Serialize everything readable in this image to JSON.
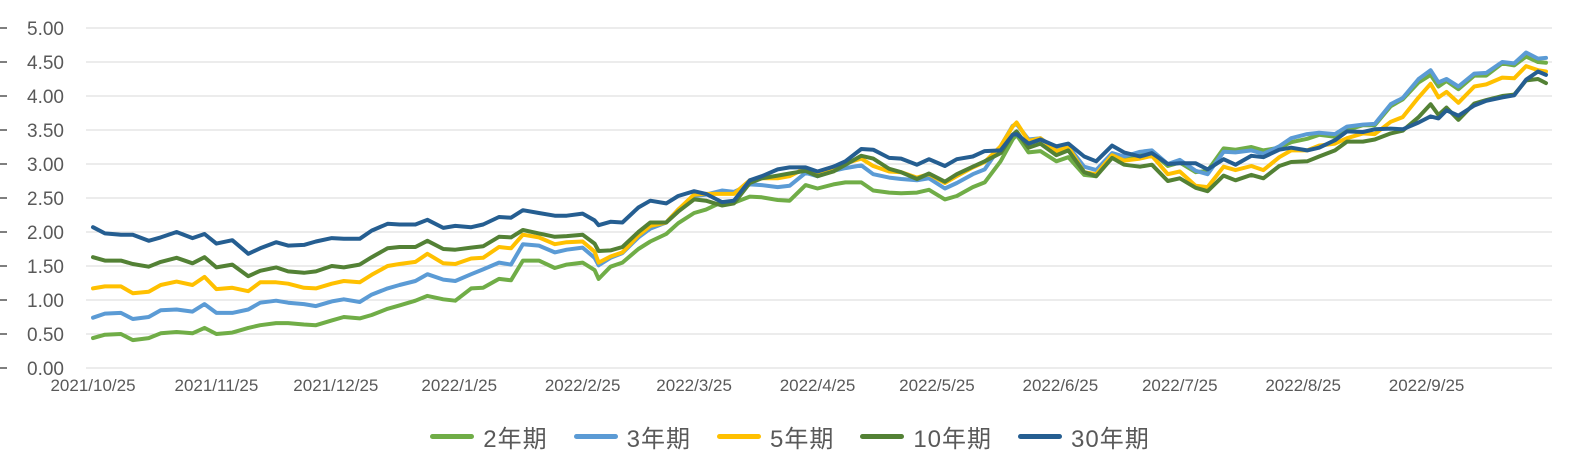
{
  "page": {
    "background": "#FFFFFF",
    "text_color": "#595959",
    "grid_color": "#D9D9D9"
  },
  "chart_data": {
    "type": "line",
    "title": "",
    "grid": true,
    "legend_position": "bottom",
    "y_axis": {
      "range": [
        0,
        5
      ],
      "tick_values": [
        0,
        0.5,
        1,
        1.5,
        2,
        2.5,
        3,
        3.5,
        4,
        4.5,
        5
      ],
      "tick_labels": [
        "0.00",
        "0.50",
        "1.00",
        "1.50",
        "2.00",
        "2.50",
        "3.00",
        "3.50",
        "4.00",
        "4.50",
        "5.00"
      ]
    },
    "x_axis": {
      "tick_labels": [
        "2021/10/25",
        "2021/11/25",
        "2021/12/25",
        "2022/1/25",
        "2022/2/25",
        "2022/3/25",
        "2022/4/25",
        "2022/5/25",
        "2022/6/25",
        "2022/7/25",
        "2022/8/25",
        "2022/9/25"
      ],
      "tick_days": [
        0,
        31,
        61,
        92,
        123,
        151,
        182,
        212,
        243,
        273,
        304,
        335
      ],
      "domain_days": [
        0,
        365
      ]
    },
    "days": [
      0,
      3,
      7,
      10,
      14,
      17,
      21,
      25,
      28,
      31,
      35,
      39,
      42,
      46,
      49,
      53,
      56,
      60,
      63,
      67,
      70,
      74,
      77,
      81,
      84,
      88,
      91,
      95,
      98,
      102,
      105,
      108,
      112,
      116,
      119,
      123,
      126,
      127,
      130,
      133,
      137,
      140,
      144,
      147,
      151,
      154,
      158,
      161,
      165,
      168,
      172,
      175,
      179,
      182,
      186,
      189,
      193,
      196,
      200,
      203,
      207,
      210,
      214,
      217,
      221,
      224,
      228,
      231,
      232,
      235,
      238,
      242,
      245,
      249,
      252,
      256,
      259,
      263,
      266,
      270,
      273,
      277,
      280,
      284,
      287,
      291,
      294,
      298,
      301,
      305,
      308,
      312,
      315,
      319,
      322,
      326,
      329,
      333,
      336,
      338,
      340,
      343,
      347,
      350,
      354,
      357,
      360,
      363,
      365
    ],
    "series": [
      {
        "key": "2y",
        "name": "2年期",
        "color": "#70AD47",
        "values": [
          0.44,
          0.49,
          0.5,
          0.41,
          0.44,
          0.51,
          0.53,
          0.51,
          0.59,
          0.5,
          0.52,
          0.59,
          0.63,
          0.66,
          0.66,
          0.64,
          0.63,
          0.7,
          0.75,
          0.73,
          0.78,
          0.87,
          0.92,
          0.99,
          1.06,
          1.01,
          0.99,
          1.17,
          1.18,
          1.31,
          1.29,
          1.58,
          1.58,
          1.47,
          1.52,
          1.55,
          1.44,
          1.31,
          1.49,
          1.55,
          1.75,
          1.86,
          1.97,
          2.13,
          2.28,
          2.33,
          2.44,
          2.43,
          2.52,
          2.51,
          2.47,
          2.46,
          2.69,
          2.64,
          2.7,
          2.73,
          2.73,
          2.61,
          2.58,
          2.57,
          2.58,
          2.62,
          2.48,
          2.53,
          2.66,
          2.73,
          3.04,
          3.36,
          3.43,
          3.17,
          3.19,
          3.04,
          3.1,
          2.84,
          2.82,
          3.12,
          3.07,
          3.15,
          3.17,
          2.97,
          3.02,
          2.88,
          2.9,
          3.23,
          3.21,
          3.25,
          3.2,
          3.24,
          3.32,
          3.37,
          3.43,
          3.4,
          3.5,
          3.57,
          3.57,
          3.85,
          3.95,
          4.2,
          4.31,
          4.14,
          4.22,
          4.1,
          4.3,
          4.3,
          4.48,
          4.45,
          4.58,
          4.5,
          4.49
        ]
      },
      {
        "key": "3y",
        "name": "3年期",
        "color": "#5B9BD5",
        "values": [
          0.74,
          0.8,
          0.81,
          0.72,
          0.75,
          0.85,
          0.86,
          0.83,
          0.94,
          0.81,
          0.81,
          0.86,
          0.96,
          0.99,
          0.96,
          0.94,
          0.91,
          0.98,
          1.01,
          0.97,
          1.08,
          1.17,
          1.22,
          1.28,
          1.38,
          1.3,
          1.28,
          1.38,
          1.45,
          1.55,
          1.52,
          1.82,
          1.8,
          1.7,
          1.74,
          1.77,
          1.62,
          1.51,
          1.62,
          1.69,
          1.92,
          2.05,
          2.14,
          2.33,
          2.53,
          2.55,
          2.61,
          2.59,
          2.7,
          2.69,
          2.66,
          2.68,
          2.87,
          2.82,
          2.9,
          2.94,
          2.98,
          2.85,
          2.8,
          2.78,
          2.76,
          2.79,
          2.64,
          2.72,
          2.85,
          2.92,
          3.26,
          3.56,
          3.59,
          3.36,
          3.38,
          3.21,
          3.26,
          2.96,
          2.91,
          3.16,
          3.11,
          3.18,
          3.2,
          3.0,
          3.06,
          2.9,
          2.85,
          3.18,
          3.17,
          3.2,
          3.15,
          3.26,
          3.38,
          3.44,
          3.46,
          3.44,
          3.55,
          3.58,
          3.59,
          3.88,
          3.97,
          4.25,
          4.38,
          4.2,
          4.25,
          4.14,
          4.33,
          4.34,
          4.5,
          4.48,
          4.64,
          4.55,
          4.56
        ]
      },
      {
        "key": "5y",
        "name": "5年期",
        "color": "#FFC000",
        "values": [
          1.17,
          1.2,
          1.2,
          1.1,
          1.12,
          1.22,
          1.27,
          1.22,
          1.34,
          1.16,
          1.18,
          1.13,
          1.26,
          1.26,
          1.24,
          1.18,
          1.17,
          1.24,
          1.28,
          1.26,
          1.37,
          1.5,
          1.53,
          1.56,
          1.68,
          1.54,
          1.53,
          1.61,
          1.62,
          1.78,
          1.76,
          1.96,
          1.92,
          1.82,
          1.85,
          1.86,
          1.71,
          1.55,
          1.64,
          1.7,
          1.95,
          2.09,
          2.14,
          2.33,
          2.55,
          2.56,
          2.56,
          2.56,
          2.76,
          2.79,
          2.79,
          2.82,
          2.94,
          2.84,
          2.92,
          3.01,
          3.08,
          2.97,
          2.89,
          2.88,
          2.8,
          2.85,
          2.72,
          2.82,
          2.95,
          3.03,
          3.26,
          3.55,
          3.61,
          3.34,
          3.38,
          3.19,
          3.25,
          2.88,
          2.85,
          3.13,
          3.05,
          3.08,
          3.12,
          2.85,
          2.89,
          2.68,
          2.66,
          2.96,
          2.91,
          2.97,
          2.91,
          3.1,
          3.2,
          3.2,
          3.27,
          3.3,
          3.38,
          3.45,
          3.44,
          3.62,
          3.69,
          3.98,
          4.18,
          3.98,
          4.06,
          3.9,
          4.14,
          4.17,
          4.27,
          4.26,
          4.44,
          4.38,
          4.36
        ]
      },
      {
        "key": "10y",
        "name": "10年期",
        "color": "#538135",
        "values": [
          1.63,
          1.58,
          1.58,
          1.53,
          1.49,
          1.56,
          1.62,
          1.54,
          1.63,
          1.48,
          1.52,
          1.35,
          1.43,
          1.48,
          1.42,
          1.4,
          1.42,
          1.5,
          1.48,
          1.52,
          1.63,
          1.76,
          1.78,
          1.78,
          1.87,
          1.75,
          1.74,
          1.77,
          1.79,
          1.93,
          1.92,
          2.03,
          1.98,
          1.93,
          1.94,
          1.96,
          1.83,
          1.72,
          1.73,
          1.78,
          2.0,
          2.14,
          2.14,
          2.3,
          2.48,
          2.46,
          2.39,
          2.42,
          2.72,
          2.79,
          2.83,
          2.86,
          2.9,
          2.82,
          2.89,
          2.99,
          3.12,
          3.08,
          2.93,
          2.88,
          2.78,
          2.86,
          2.74,
          2.85,
          2.96,
          3.04,
          3.16,
          3.43,
          3.48,
          3.24,
          3.3,
          3.13,
          3.2,
          2.88,
          2.82,
          3.09,
          2.99,
          2.96,
          2.99,
          2.75,
          2.79,
          2.65,
          2.6,
          2.83,
          2.76,
          2.84,
          2.79,
          2.97,
          3.03,
          3.04,
          3.11,
          3.2,
          3.33,
          3.33,
          3.36,
          3.45,
          3.49,
          3.69,
          3.88,
          3.72,
          3.83,
          3.65,
          3.89,
          3.94,
          4.0,
          4.02,
          4.23,
          4.25,
          4.19
        ]
      },
      {
        "key": "30y",
        "name": "30年期",
        "color": "#255E91",
        "values": [
          2.07,
          1.98,
          1.96,
          1.96,
          1.87,
          1.92,
          2.0,
          1.91,
          1.97,
          1.83,
          1.88,
          1.68,
          1.76,
          1.85,
          1.8,
          1.81,
          1.86,
          1.91,
          1.9,
          1.9,
          2.02,
          2.12,
          2.11,
          2.11,
          2.18,
          2.06,
          2.09,
          2.07,
          2.11,
          2.22,
          2.21,
          2.32,
          2.28,
          2.24,
          2.24,
          2.27,
          2.17,
          2.1,
          2.15,
          2.14,
          2.36,
          2.46,
          2.42,
          2.53,
          2.6,
          2.56,
          2.44,
          2.46,
          2.76,
          2.82,
          2.92,
          2.95,
          2.95,
          2.89,
          2.96,
          3.04,
          3.22,
          3.21,
          3.09,
          3.08,
          2.99,
          3.07,
          2.97,
          3.07,
          3.11,
          3.19,
          3.2,
          3.43,
          3.44,
          3.3,
          3.36,
          3.26,
          3.3,
          3.11,
          3.04,
          3.27,
          3.17,
          3.11,
          3.16,
          3.0,
          3.01,
          3.01,
          2.92,
          3.07,
          2.99,
          3.12,
          3.1,
          3.21,
          3.24,
          3.2,
          3.24,
          3.35,
          3.48,
          3.47,
          3.51,
          3.52,
          3.51,
          3.61,
          3.7,
          3.67,
          3.79,
          3.71,
          3.86,
          3.93,
          3.98,
          4.01,
          4.24,
          4.36,
          4.31
        ]
      }
    ]
  }
}
